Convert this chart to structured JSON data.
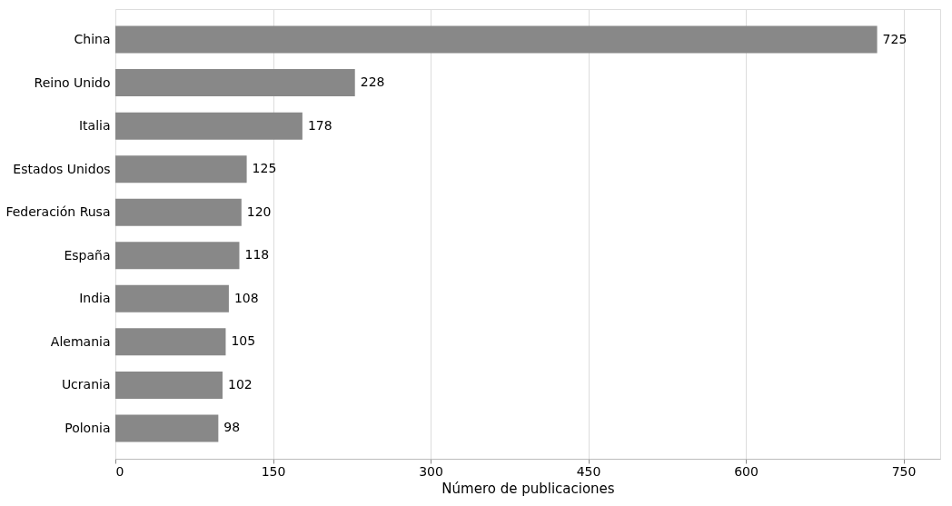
{
  "chart_data": {
    "type": "bar",
    "orientation": "horizontal",
    "xlabel": "Número de publicaciones",
    "categories": [
      "China",
      "Reino Unido",
      "Italia",
      "Estados Unidos",
      "Federación Rusa",
      "España",
      "India",
      "Alemania",
      "Ucrania",
      "Polonia"
    ],
    "values": [
      725,
      228,
      178,
      125,
      120,
      118,
      108,
      105,
      102,
      98
    ],
    "color": "#888888",
    "data_labels": true,
    "xlim": [
      0,
      785
    ],
    "xticks": [
      0,
      150,
      300,
      450,
      600,
      750
    ],
    "grid": "x"
  }
}
